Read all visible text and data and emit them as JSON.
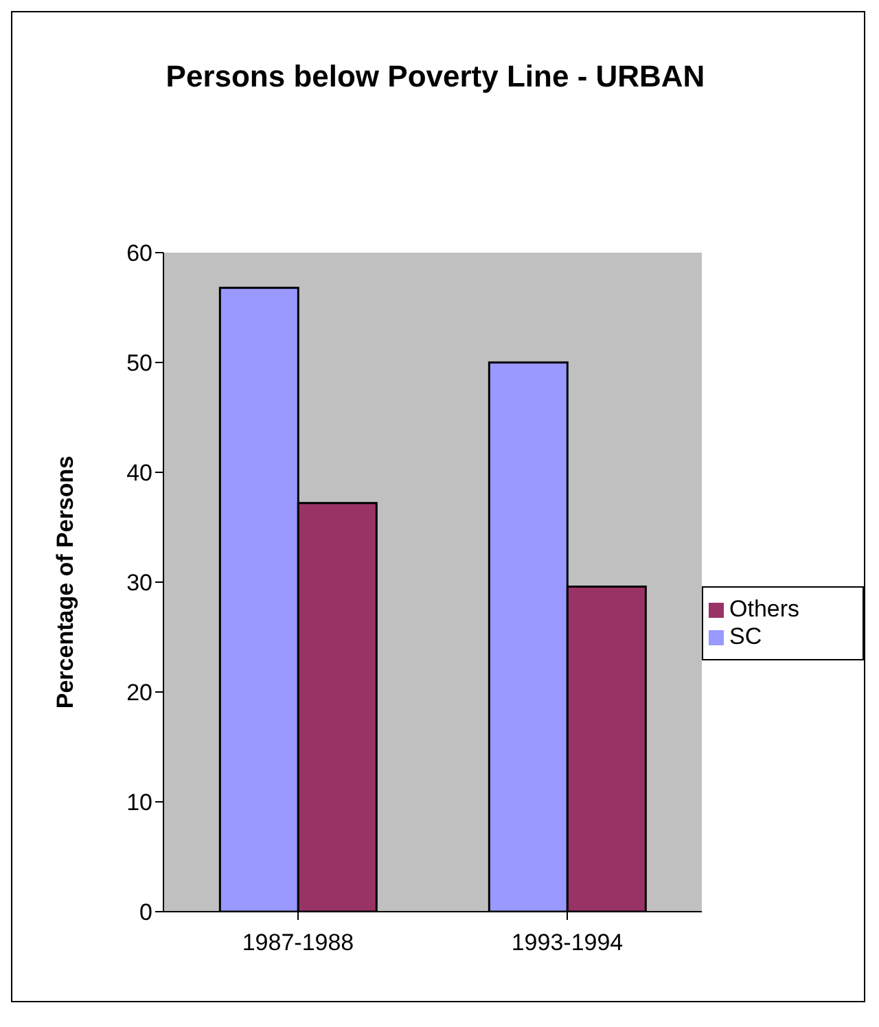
{
  "chart_data": {
    "type": "bar",
    "title": "Persons below Poverty Line - URBAN",
    "ylabel": "Percentage of Persons",
    "categories": [
      "1987-1988",
      "1993-1994"
    ],
    "series": [
      {
        "name": "SC",
        "color": "#9999ff",
        "values": [
          56.8,
          50.0
        ]
      },
      {
        "name": "Others",
        "color": "#993366",
        "values": [
          37.2,
          29.6
        ]
      }
    ],
    "ylim": [
      0,
      60
    ],
    "yticks": [
      0,
      10,
      20,
      30,
      40,
      50,
      60
    ],
    "grid": false,
    "legend": "right"
  }
}
